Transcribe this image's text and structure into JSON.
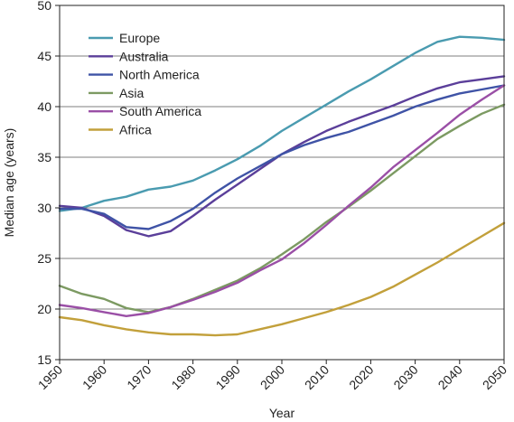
{
  "chart_data": {
    "type": "line",
    "xlabel": "Year",
    "ylabel": "Median age (years)",
    "xlim": [
      1950,
      2050
    ],
    "ylim": [
      15,
      50
    ],
    "xticks": [
      1950,
      1960,
      1970,
      1980,
      1990,
      2000,
      2010,
      2020,
      2030,
      2040,
      2050
    ],
    "yticks": [
      15,
      20,
      25,
      30,
      35,
      40,
      45,
      50
    ],
    "grid": "horizontal",
    "legend_position": "top-left",
    "x": [
      1950,
      1955,
      1960,
      1965,
      1970,
      1975,
      1980,
      1985,
      1990,
      1995,
      2000,
      2005,
      2010,
      2015,
      2020,
      2025,
      2030,
      2035,
      2040,
      2045,
      2050
    ],
    "series": [
      {
        "name": "Europe",
        "color": "#4a9bb0",
        "values": [
          29.7,
          30.0,
          30.7,
          31.1,
          31.8,
          32.1,
          32.7,
          33.7,
          34.8,
          36.1,
          37.6,
          38.9,
          40.2,
          41.5,
          42.7,
          44.0,
          45.3,
          46.4,
          46.9,
          46.8,
          46.6
        ]
      },
      {
        "name": "Australia",
        "color": "#5b3f9a",
        "values": [
          30.2,
          30.0,
          29.2,
          27.8,
          27.2,
          27.7,
          29.2,
          30.8,
          32.3,
          33.8,
          35.3,
          36.5,
          37.6,
          38.5,
          39.3,
          40.1,
          41.0,
          41.8,
          42.4,
          42.7,
          43.0
        ]
      },
      {
        "name": "North America",
        "color": "#3f53a6",
        "values": [
          29.9,
          29.9,
          29.4,
          28.1,
          27.9,
          28.7,
          29.9,
          31.5,
          32.9,
          34.1,
          35.3,
          36.2,
          36.9,
          37.5,
          38.3,
          39.1,
          40.0,
          40.7,
          41.3,
          41.7,
          42.1
        ]
      },
      {
        "name": "Asia",
        "color": "#7c9a62",
        "values": [
          22.3,
          21.5,
          21.0,
          20.1,
          19.7,
          20.2,
          21.0,
          21.9,
          22.8,
          24.0,
          25.4,
          26.9,
          28.6,
          30.1,
          31.7,
          33.4,
          35.1,
          36.8,
          38.1,
          39.3,
          40.2
        ]
      },
      {
        "name": "South America",
        "color": "#9a4fa6",
        "values": [
          20.4,
          20.1,
          19.7,
          19.3,
          19.6,
          20.2,
          20.9,
          21.7,
          22.6,
          23.8,
          24.9,
          26.5,
          28.3,
          30.2,
          32.0,
          34.0,
          35.7,
          37.4,
          39.2,
          40.7,
          42.1
        ]
      },
      {
        "name": "Africa",
        "color": "#c2a03b",
        "values": [
          19.2,
          18.9,
          18.4,
          18.0,
          17.7,
          17.5,
          17.5,
          17.4,
          17.5,
          18.0,
          18.5,
          19.1,
          19.7,
          20.4,
          21.2,
          22.2,
          23.4,
          24.6,
          25.9,
          27.2,
          28.5
        ]
      }
    ]
  }
}
